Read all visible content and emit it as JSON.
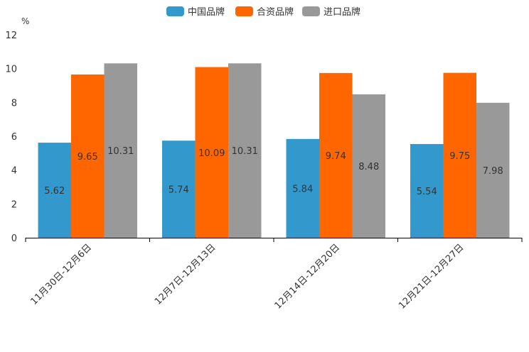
{
  "chart_data": {
    "type": "bar",
    "title": "",
    "xlabel": "",
    "ylabel": "%",
    "ylim": [
      0,
      12
    ],
    "yticks": [
      0,
      2,
      4,
      6,
      8,
      10,
      12
    ],
    "grid": false,
    "legend_position": "top-center",
    "categories": [
      "11月30日-12月6日",
      "12月7日-12月13日",
      "12月14日-12月20日",
      "12月21日-12月27日"
    ],
    "series": [
      {
        "name": "中国品牌",
        "color": "#3399cc",
        "values": [
          5.62,
          5.74,
          5.84,
          5.54
        ],
        "labels": [
          "5.62",
          "5.74",
          "5.84",
          "5.54"
        ]
      },
      {
        "name": "合资品牌",
        "color": "#ff6600",
        "values": [
          9.65,
          10.09,
          9.74,
          9.75
        ],
        "labels": [
          "9.65",
          "10.09",
          "9.74",
          "9.75"
        ]
      },
      {
        "name": "进口品牌",
        "color": "#999999",
        "values": [
          10.31,
          10.31,
          8.48,
          7.98
        ],
        "labels": [
          "10.31",
          "10.31",
          "8.48",
          "7.98"
        ]
      }
    ]
  }
}
